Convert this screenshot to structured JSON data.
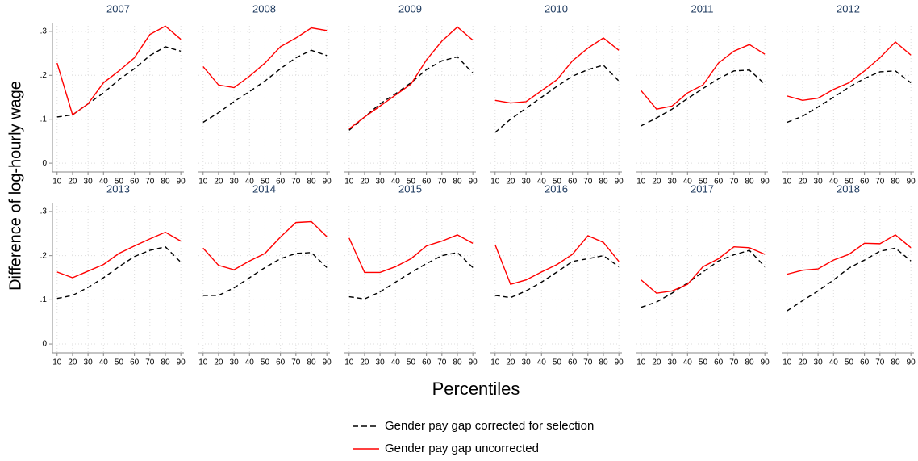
{
  "y_label": "Difference of log-hourly wage",
  "x_label": "Percentiles",
  "chart_data": [
    {
      "type": "line",
      "title": "2007",
      "x": [
        10,
        20,
        30,
        40,
        50,
        60,
        70,
        80,
        90
      ],
      "xlim": [
        7,
        92
      ],
      "xticks": [
        10,
        20,
        30,
        40,
        50,
        60,
        70,
        80,
        90
      ],
      "ylim": [
        -0.02,
        0.32
      ],
      "yticks": [
        0,
        {
          "value": 0.1,
          "label": ".1"
        },
        {
          "value": 0.2,
          "label": ".2"
        },
        {
          "value": 0.3,
          "label": ".3"
        }
      ],
      "grid": true,
      "series": [
        {
          "name": "Gender pay gap corrected for selection",
          "color": "#000000",
          "dash": true,
          "values": [
            0.105,
            0.11,
            0.135,
            0.16,
            0.19,
            0.215,
            0.245,
            0.265,
            0.255
          ]
        },
        {
          "name": "Gender pay gap uncorrected",
          "color": "#ff0000",
          "dash": false,
          "values": [
            0.228,
            0.11,
            0.135,
            0.183,
            0.21,
            0.24,
            0.293,
            0.312,
            0.282
          ]
        }
      ]
    },
    {
      "type": "line",
      "title": "2008",
      "x": [
        10,
        20,
        30,
        40,
        50,
        60,
        70,
        80,
        90
      ],
      "xlim": [
        7,
        92
      ],
      "xticks": [
        10,
        20,
        30,
        40,
        50,
        60,
        70,
        80,
        90
      ],
      "ylim": [
        -0.02,
        0.32
      ],
      "yticks": [
        0,
        {
          "value": 0.1,
          "label": ".1"
        },
        {
          "value": 0.2,
          "label": ".2"
        },
        {
          "value": 0.3,
          "label": ".3"
        }
      ],
      "grid": true,
      "series": [
        {
          "color": "#000000",
          "dash": true,
          "values": [
            0.093,
            0.115,
            0.14,
            0.163,
            0.187,
            0.215,
            0.24,
            0.257,
            0.245
          ]
        },
        {
          "color": "#ff0000",
          "dash": false,
          "values": [
            0.22,
            0.178,
            0.172,
            0.198,
            0.228,
            0.265,
            0.285,
            0.308,
            0.302
          ]
        }
      ]
    },
    {
      "type": "line",
      "title": "2009",
      "x": [
        10,
        20,
        30,
        40,
        50,
        60,
        70,
        80,
        90
      ],
      "xlim": [
        7,
        92
      ],
      "xticks": [
        10,
        20,
        30,
        40,
        50,
        60,
        70,
        80,
        90
      ],
      "ylim": [
        -0.02,
        0.32
      ],
      "yticks": [
        0,
        {
          "value": 0.1,
          "label": ".1"
        },
        {
          "value": 0.2,
          "label": ".2"
        },
        {
          "value": 0.3,
          "label": ".3"
        }
      ],
      "grid": true,
      "series": [
        {
          "color": "#000000",
          "dash": true,
          "values": [
            0.075,
            0.105,
            0.135,
            0.158,
            0.183,
            0.213,
            0.233,
            0.242,
            0.205
          ]
        },
        {
          "color": "#ff0000",
          "dash": false,
          "values": [
            0.078,
            0.105,
            0.13,
            0.155,
            0.18,
            0.235,
            0.278,
            0.31,
            0.28
          ]
        }
      ]
    },
    {
      "type": "line",
      "title": "2010",
      "x": [
        10,
        20,
        30,
        40,
        50,
        60,
        70,
        80,
        90
      ],
      "xlim": [
        7,
        92
      ],
      "xticks": [
        10,
        20,
        30,
        40,
        50,
        60,
        70,
        80,
        90
      ],
      "ylim": [
        -0.02,
        0.32
      ],
      "yticks": [
        0,
        {
          "value": 0.1,
          "label": ".1"
        },
        {
          "value": 0.2,
          "label": ".2"
        },
        {
          "value": 0.3,
          "label": ".3"
        }
      ],
      "grid": true,
      "series": [
        {
          "color": "#000000",
          "dash": true,
          "values": [
            0.07,
            0.1,
            0.125,
            0.15,
            0.175,
            0.198,
            0.213,
            0.223,
            0.187
          ]
        },
        {
          "color": "#ff0000",
          "dash": false,
          "values": [
            0.143,
            0.137,
            0.14,
            0.165,
            0.19,
            0.233,
            0.262,
            0.285,
            0.257
          ]
        }
      ]
    },
    {
      "type": "line",
      "title": "2011",
      "x": [
        10,
        20,
        30,
        40,
        50,
        60,
        70,
        80,
        90
      ],
      "xlim": [
        7,
        92
      ],
      "xticks": [
        10,
        20,
        30,
        40,
        50,
        60,
        70,
        80,
        90
      ],
      "ylim": [
        -0.02,
        0.32
      ],
      "yticks": [
        0,
        {
          "value": 0.1,
          "label": ".1"
        },
        {
          "value": 0.2,
          "label": ".2"
        },
        {
          "value": 0.3,
          "label": ".3"
        }
      ],
      "grid": true,
      "series": [
        {
          "color": "#000000",
          "dash": true,
          "values": [
            0.085,
            0.103,
            0.123,
            0.147,
            0.17,
            0.192,
            0.21,
            0.212,
            0.18
          ]
        },
        {
          "color": "#ff0000",
          "dash": false,
          "values": [
            0.165,
            0.123,
            0.13,
            0.16,
            0.178,
            0.228,
            0.255,
            0.27,
            0.248
          ]
        }
      ]
    },
    {
      "type": "line",
      "title": "2012",
      "x": [
        10,
        20,
        30,
        40,
        50,
        60,
        70,
        80,
        90
      ],
      "xlim": [
        7,
        92
      ],
      "xticks": [
        10,
        20,
        30,
        40,
        50,
        60,
        70,
        80,
        90
      ],
      "ylim": [
        -0.02,
        0.32
      ],
      "yticks": [
        0,
        {
          "value": 0.1,
          "label": ".1"
        },
        {
          "value": 0.2,
          "label": ".2"
        },
        {
          "value": 0.3,
          "label": ".3"
        }
      ],
      "grid": true,
      "series": [
        {
          "color": "#000000",
          "dash": true,
          "values": [
            0.093,
            0.107,
            0.128,
            0.15,
            0.173,
            0.193,
            0.208,
            0.21,
            0.183
          ]
        },
        {
          "color": "#ff0000",
          "dash": false,
          "values": [
            0.153,
            0.143,
            0.148,
            0.168,
            0.183,
            0.21,
            0.24,
            0.276,
            0.246
          ]
        }
      ]
    },
    {
      "type": "line",
      "title": "2013",
      "x": [
        10,
        20,
        30,
        40,
        50,
        60,
        70,
        80,
        90
      ],
      "xlim": [
        7,
        92
      ],
      "xticks": [
        10,
        20,
        30,
        40,
        50,
        60,
        70,
        80,
        90
      ],
      "ylim": [
        -0.02,
        0.32
      ],
      "yticks": [
        0,
        {
          "value": 0.1,
          "label": ".1"
        },
        {
          "value": 0.2,
          "label": ".2"
        },
        {
          "value": 0.3,
          "label": ".3"
        }
      ],
      "grid": true,
      "series": [
        {
          "color": "#000000",
          "dash": true,
          "values": [
            0.103,
            0.11,
            0.128,
            0.15,
            0.175,
            0.198,
            0.212,
            0.22,
            0.185
          ]
        },
        {
          "color": "#ff0000",
          "dash": false,
          "values": [
            0.163,
            0.15,
            0.165,
            0.18,
            0.205,
            0.222,
            0.238,
            0.253,
            0.233
          ]
        }
      ]
    },
    {
      "type": "line",
      "title": "2014",
      "x": [
        10,
        20,
        30,
        40,
        50,
        60,
        70,
        80,
        90
      ],
      "xlim": [
        7,
        92
      ],
      "xticks": [
        10,
        20,
        30,
        40,
        50,
        60,
        70,
        80,
        90
      ],
      "ylim": [
        -0.02,
        0.32
      ],
      "yticks": [
        0,
        {
          "value": 0.1,
          "label": ".1"
        },
        {
          "value": 0.2,
          "label": ".2"
        },
        {
          "value": 0.3,
          "label": ".3"
        }
      ],
      "grid": true,
      "series": [
        {
          "color": "#000000",
          "dash": true,
          "values": [
            0.11,
            0.11,
            0.127,
            0.15,
            0.173,
            0.193,
            0.205,
            0.207,
            0.173
          ]
        },
        {
          "color": "#ff0000",
          "dash": false,
          "values": [
            0.217,
            0.178,
            0.168,
            0.188,
            0.205,
            0.242,
            0.275,
            0.277,
            0.243
          ]
        }
      ]
    },
    {
      "type": "line",
      "title": "2015",
      "x": [
        10,
        20,
        30,
        40,
        50,
        60,
        70,
        80,
        90
      ],
      "xlim": [
        7,
        92
      ],
      "xticks": [
        10,
        20,
        30,
        40,
        50,
        60,
        70,
        80,
        90
      ],
      "ylim": [
        -0.02,
        0.32
      ],
      "yticks": [
        0,
        {
          "value": 0.1,
          "label": ".1"
        },
        {
          "value": 0.2,
          "label": ".2"
        },
        {
          "value": 0.3,
          "label": ".3"
        }
      ],
      "grid": true,
      "series": [
        {
          "color": "#000000",
          "dash": true,
          "values": [
            0.107,
            0.102,
            0.118,
            0.14,
            0.162,
            0.182,
            0.2,
            0.207,
            0.173
          ]
        },
        {
          "color": "#ff0000",
          "dash": false,
          "values": [
            0.24,
            0.162,
            0.162,
            0.175,
            0.193,
            0.222,
            0.233,
            0.247,
            0.228
          ]
        }
      ]
    },
    {
      "type": "line",
      "title": "2016",
      "x": [
        10,
        20,
        30,
        40,
        50,
        60,
        70,
        80,
        90
      ],
      "xlim": [
        7,
        92
      ],
      "xticks": [
        10,
        20,
        30,
        40,
        50,
        60,
        70,
        80,
        90
      ],
      "ylim": [
        -0.02,
        0.32
      ],
      "yticks": [
        0,
        {
          "value": 0.1,
          "label": ".1"
        },
        {
          "value": 0.2,
          "label": ".2"
        },
        {
          "value": 0.3,
          "label": ".3"
        }
      ],
      "grid": true,
      "series": [
        {
          "color": "#000000",
          "dash": true,
          "values": [
            0.11,
            0.105,
            0.12,
            0.14,
            0.163,
            0.187,
            0.193,
            0.2,
            0.175
          ]
        },
        {
          "color": "#ff0000",
          "dash": false,
          "values": [
            0.225,
            0.135,
            0.145,
            0.163,
            0.18,
            0.203,
            0.245,
            0.23,
            0.187
          ]
        }
      ]
    },
    {
      "type": "line",
      "title": "2017",
      "x": [
        10,
        20,
        30,
        40,
        50,
        60,
        70,
        80,
        90
      ],
      "xlim": [
        7,
        92
      ],
      "xticks": [
        10,
        20,
        30,
        40,
        50,
        60,
        70,
        80,
        90
      ],
      "ylim": [
        -0.02,
        0.32
      ],
      "yticks": [
        0,
        {
          "value": 0.1,
          "label": ".1"
        },
        {
          "value": 0.2,
          "label": ".2"
        },
        {
          "value": 0.3,
          "label": ".3"
        }
      ],
      "grid": true,
      "series": [
        {
          "color": "#000000",
          "dash": true,
          "values": [
            0.083,
            0.095,
            0.115,
            0.138,
            0.163,
            0.188,
            0.202,
            0.212,
            0.175
          ]
        },
        {
          "color": "#ff0000",
          "dash": false,
          "values": [
            0.145,
            0.115,
            0.12,
            0.135,
            0.175,
            0.193,
            0.22,
            0.218,
            0.203
          ]
        }
      ]
    },
    {
      "type": "line",
      "title": "2018",
      "x": [
        10,
        20,
        30,
        40,
        50,
        60,
        70,
        80,
        90
      ],
      "xlim": [
        7,
        92
      ],
      "xticks": [
        10,
        20,
        30,
        40,
        50,
        60,
        70,
        80,
        90
      ],
      "ylim": [
        -0.02,
        0.32
      ],
      "yticks": [
        0,
        {
          "value": 0.1,
          "label": ".1"
        },
        {
          "value": 0.2,
          "label": ".2"
        },
        {
          "value": 0.3,
          "label": ".3"
        }
      ],
      "grid": true,
      "series": [
        {
          "color": "#000000",
          "dash": true,
          "values": [
            0.075,
            0.098,
            0.12,
            0.145,
            0.172,
            0.19,
            0.21,
            0.217,
            0.188
          ]
        },
        {
          "color": "#ff0000",
          "dash": false,
          "values": [
            0.158,
            0.167,
            0.17,
            0.19,
            0.203,
            0.228,
            0.227,
            0.247,
            0.218
          ]
        }
      ]
    }
  ]
}
